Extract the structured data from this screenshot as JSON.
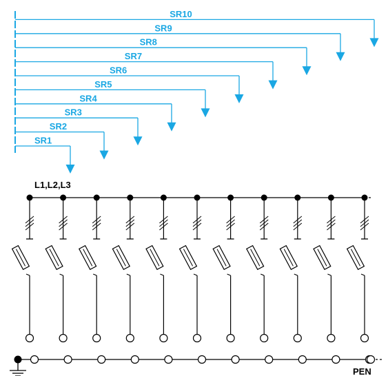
{
  "colors": {
    "range_line": "#1aa7e3",
    "circuit_line": "#000000",
    "background": "#ffffff"
  },
  "ranges": [
    {
      "label": "SR1"
    },
    {
      "label": "SR2"
    },
    {
      "label": "SR3"
    },
    {
      "label": "SR4"
    },
    {
      "label": "SR5"
    },
    {
      "label": "SR6"
    },
    {
      "label": "SR7"
    },
    {
      "label": "SR8"
    },
    {
      "label": "SR9"
    },
    {
      "label": "SR10"
    }
  ],
  "busbar": {
    "phase_label": "L1,L2,L3",
    "pen_label": "PEN",
    "feeder_count": 11
  },
  "icons": {
    "fuse": "fuse-symbol-icon",
    "earth": "earth-ground-icon",
    "three_phase": "three-phase-tick-icon"
  }
}
